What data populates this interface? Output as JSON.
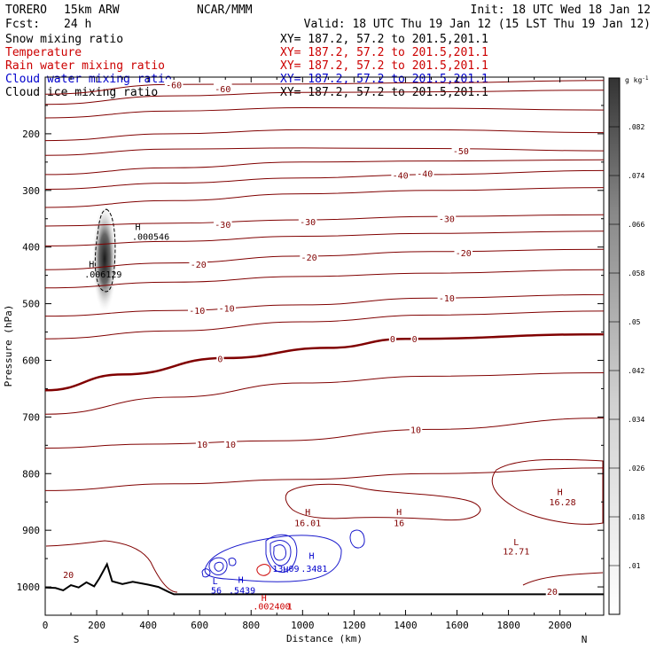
{
  "header": {
    "model": "TORERO",
    "resolution": "15km ARW",
    "fcst_label": "Fcst:",
    "fcst_value": "24 h",
    "center": "NCAR/MMM",
    "init": "Init: 18 UTC Wed 18 Jan 12",
    "valid": "Valid: 18 UTC Thu 19 Jan 12 (15 LST Thu 19 Jan 12)"
  },
  "fields": [
    {
      "name": "Snow mixing ratio",
      "xy": "XY= 187.2, 57.2 to 201.5,201.1",
      "name_color": "#000000",
      "xy_color": "#000000"
    },
    {
      "name": "Temperature",
      "xy": "XY= 187.2, 57.2 to 201.5,201.1",
      "name_color": "#cc0000",
      "xy_color": "#cc0000"
    },
    {
      "name": "Rain water mixing ratio",
      "xy": "XY= 187.2, 57.2 to 201.5,201.1",
      "name_color": "#cc0000",
      "xy_color": "#cc0000"
    },
    {
      "name": "Cloud water mixing ratio",
      "xy": "XY= 187.2, 57.2 to 201.5,201.1",
      "name_color": "#0000cc",
      "xy_color": "#0000cc"
    },
    {
      "name": "Cloud ice mixing ratio",
      "xy": "XY= 187.2, 57.2 to 201.5,201.1",
      "name_color": "#000000",
      "xy_color": "#000000"
    }
  ],
  "colors": {
    "temperature": "#800000",
    "cloud_water": "#1a1acc",
    "rain_label": "#cc0000",
    "terrain": "#000000"
  },
  "chart_data": {
    "type": "contour",
    "xlabel": "Distance (km)",
    "ylabel": "Pressure (hPa)",
    "xlim": [
      0,
      2170
    ],
    "ylim": [
      1050,
      100
    ],
    "y_scale": "linear",
    "x_ticks": [
      "0",
      "200",
      "400",
      "600",
      "800",
      "1000",
      "1200",
      "1400",
      "1600",
      "1800",
      "2000"
    ],
    "y_ticks": [
      "200",
      "300",
      "400",
      "500",
      "600",
      "700",
      "800",
      "900",
      "1000"
    ],
    "end_labels": {
      "left": "S",
      "right": "N"
    },
    "colorbar": {
      "unit": "g kg",
      "unit_exp": "-1",
      "ticks": [
        ".01",
        ".018",
        ".026",
        ".034",
        ".042",
        ".05",
        ".058",
        ".066",
        ".074",
        ".082"
      ],
      "range": [
        0.002,
        0.09
      ]
    },
    "temperature_contour_labels": [
      {
        "text": "-60",
        "x": 500,
        "p": 113
      },
      {
        "text": "-60",
        "x": 690,
        "p": 120
      },
      {
        "text": "-50",
        "x": 1615,
        "p": 230
      },
      {
        "text": "-40",
        "x": 1380,
        "p": 273
      },
      {
        "text": "-40",
        "x": 1475,
        "p": 270
      },
      {
        "text": "-30",
        "x": 690,
        "p": 360
      },
      {
        "text": "-30",
        "x": 1020,
        "p": 355
      },
      {
        "text": "-30",
        "x": 1560,
        "p": 350
      },
      {
        "text": "-20",
        "x": 595,
        "p": 430
      },
      {
        "text": "-20",
        "x": 1025,
        "p": 418
      },
      {
        "text": "-20",
        "x": 1625,
        "p": 410
      },
      {
        "text": "-10",
        "x": 590,
        "p": 512
      },
      {
        "text": "-10",
        "x": 705,
        "p": 508
      },
      {
        "text": "-10",
        "x": 1560,
        "p": 490
      },
      {
        "text": "0",
        "x": 680,
        "p": 597
      },
      {
        "text": "0",
        "x": 1350,
        "p": 562
      },
      {
        "text": "0",
        "x": 1435,
        "p": 562
      },
      {
        "text": "10",
        "x": 610,
        "p": 748
      },
      {
        "text": "10",
        "x": 720,
        "p": 748
      },
      {
        "text": "10",
        "x": 1440,
        "p": 722
      },
      {
        "text": "20",
        "x": 90,
        "p": 978
      },
      {
        "text": "20",
        "x": 1970,
        "p": 1008
      }
    ],
    "extrema_labels": [
      {
        "text": "H",
        "x": 360,
        "p": 370,
        "color": "#000000"
      },
      {
        "text": ".000546",
        "x": 410,
        "p": 387,
        "color": "#000000"
      },
      {
        "text": "H",
        "x": 180,
        "p": 436,
        "color": "#000000"
      },
      {
        "text": ".006129",
        "x": 225,
        "p": 454,
        "color": "#000000"
      },
      {
        "text": "H",
        "x": 1020,
        "p": 873,
        "color": "#800000"
      },
      {
        "text": "16.01",
        "x": 1020,
        "p": 893,
        "color": "#800000"
      },
      {
        "text": "H",
        "x": 1375,
        "p": 873,
        "color": "#800000"
      },
      {
        "text": "16",
        "x": 1375,
        "p": 893,
        "color": "#800000"
      },
      {
        "text": "H",
        "x": 2000,
        "p": 838,
        "color": "#800000"
      },
      {
        "text": "16.28",
        "x": 2010,
        "p": 856,
        "color": "#800000"
      },
      {
        "text": "L",
        "x": 1830,
        "p": 926,
        "color": "#800000"
      },
      {
        "text": "12.71",
        "x": 1830,
        "p": 943,
        "color": "#800000"
      },
      {
        "text": "H",
        "x": 1035,
        "p": 951,
        "color": "#0000cc"
      },
      {
        "text": "H",
        "x": 935,
        "p": 975,
        "color": "#0000cc"
      },
      {
        "text": "13.09",
        "x": 935,
        "p": 973,
        "color": "#0000cc"
      },
      {
        "text": ".3481",
        "x": 1045,
        "p": 973,
        "color": "#0000cc"
      },
      {
        "text": "L",
        "x": 660,
        "p": 995,
        "color": "#0000cc"
      },
      {
        "text": "H",
        "x": 760,
        "p": 993,
        "color": "#0000cc"
      },
      {
        "text": "56",
        "x": 665,
        "p": 1012,
        "color": "#0000cc"
      },
      {
        "text": ".5439",
        "x": 765,
        "p": 1012,
        "color": "#0000cc"
      },
      {
        "text": "H",
        "x": 850,
        "p": 1025,
        "color": "#cc0000"
      },
      {
        "text": ".002400",
        "x": 880,
        "p": 1040,
        "color": "#cc0000"
      },
      {
        "text": "1",
        "x": 950,
        "p": 1040,
        "color": "#cc0000"
      }
    ],
    "isotherms": [
      {
        "level": -60,
        "points": [
          [
            0,
            130
          ],
          [
            500,
            113
          ],
          [
            1000,
            112
          ],
          [
            1500,
            110
          ],
          [
            2170,
            106
          ]
        ]
      },
      {
        "level": -60,
        "points": [
          [
            0,
            148
          ],
          [
            500,
            133
          ],
          [
            1000,
            127
          ],
          [
            1500,
            126
          ],
          [
            2170,
            123
          ]
        ]
      },
      {
        "level": -55,
        "points": [
          [
            0,
            172
          ],
          [
            500,
            160
          ],
          [
            1000,
            154
          ],
          [
            1500,
            155
          ],
          [
            2170,
            158
          ]
        ]
      },
      {
        "level": -50,
        "points": [
          [
            0,
            212
          ],
          [
            500,
            200
          ],
          [
            1000,
            193
          ],
          [
            1500,
            193
          ],
          [
            2170,
            198
          ]
        ]
      },
      {
        "level": -50,
        "points": [
          [
            0,
            238
          ],
          [
            500,
            227
          ],
          [
            1000,
            225
          ],
          [
            1500,
            226
          ],
          [
            2170,
            230
          ]
        ]
      },
      {
        "level": -45,
        "points": [
          [
            0,
            272
          ],
          [
            500,
            260
          ],
          [
            1000,
            250
          ],
          [
            1500,
            248
          ],
          [
            2170,
            246
          ]
        ]
      },
      {
        "level": -40,
        "points": [
          [
            0,
            298
          ],
          [
            500,
            287
          ],
          [
            1000,
            278
          ],
          [
            1500,
            272
          ],
          [
            2170,
            265
          ]
        ]
      },
      {
        "level": -35,
        "points": [
          [
            0,
            330
          ],
          [
            500,
            318
          ],
          [
            1000,
            306
          ],
          [
            1500,
            300
          ],
          [
            2170,
            295
          ]
        ]
      },
      {
        "level": -30,
        "points": [
          [
            0,
            363
          ],
          [
            500,
            358
          ],
          [
            1000,
            352
          ],
          [
            1500,
            346
          ],
          [
            2170,
            343
          ]
        ]
      },
      {
        "level": -25,
        "points": [
          [
            0,
            398
          ],
          [
            500,
            390
          ],
          [
            1000,
            381
          ],
          [
            1500,
            376
          ],
          [
            2170,
            372
          ]
        ]
      },
      {
        "level": -20,
        "points": [
          [
            0,
            440
          ],
          [
            500,
            428
          ],
          [
            1000,
            416
          ],
          [
            1500,
            408
          ],
          [
            2170,
            404
          ]
        ]
      },
      {
        "level": -15,
        "points": [
          [
            0,
            472
          ],
          [
            500,
            462
          ],
          [
            1000,
            452
          ],
          [
            1500,
            446
          ],
          [
            2170,
            440
          ]
        ]
      },
      {
        "level": -10,
        "points": [
          [
            0,
            522
          ],
          [
            500,
            512
          ],
          [
            1000,
            502
          ],
          [
            1500,
            490
          ],
          [
            2170,
            484
          ]
        ]
      },
      {
        "level": -5,
        "points": [
          [
            0,
            562
          ],
          [
            500,
            548
          ],
          [
            1000,
            532
          ],
          [
            1500,
            520
          ],
          [
            2170,
            513
          ]
        ]
      },
      {
        "level": 0,
        "points": [
          [
            0,
            653
          ],
          [
            300,
            625
          ],
          [
            700,
            596
          ],
          [
            1100,
            578
          ],
          [
            1400,
            562
          ],
          [
            2170,
            554
          ]
        ]
      },
      {
        "level": 5,
        "points": [
          [
            0,
            695
          ],
          [
            500,
            665
          ],
          [
            1000,
            640
          ],
          [
            1500,
            628
          ],
          [
            2170,
            622
          ]
        ]
      },
      {
        "level": 10,
        "points": [
          [
            0,
            755
          ],
          [
            400,
            748
          ],
          [
            900,
            742
          ],
          [
            1500,
            722
          ],
          [
            2170,
            702
          ]
        ]
      },
      {
        "level": 15,
        "points": [
          [
            0,
            830
          ],
          [
            500,
            818
          ],
          [
            1000,
            810
          ],
          [
            1500,
            800
          ],
          [
            2170,
            790
          ]
        ]
      }
    ],
    "terrain": [
      [
        0,
        1001
      ],
      [
        40,
        1002
      ],
      [
        70,
        1006
      ],
      [
        100,
        997
      ],
      [
        130,
        1001
      ],
      [
        160,
        992
      ],
      [
        190,
        999
      ],
      [
        210,
        985
      ],
      [
        240,
        960
      ],
      [
        260,
        990
      ],
      [
        300,
        995
      ],
      [
        340,
        991
      ],
      [
        400,
        996
      ],
      [
        440,
        1000
      ],
      [
        480,
        1009
      ],
      [
        500,
        1013
      ],
      [
        1400,
        1013
      ],
      [
        2170,
        1013
      ]
    ]
  }
}
